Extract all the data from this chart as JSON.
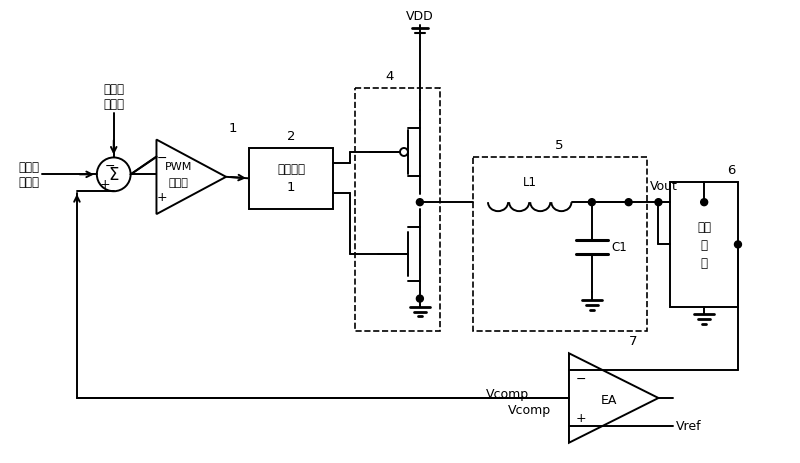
{
  "background": "#ffffff",
  "fig_width": 8.0,
  "fig_height": 4.64,
  "dpi": 100,
  "labels": {
    "current_signal": "电流采\n样信号",
    "slope_signal": "斜坡补\n偿信号",
    "pwm_line1": "PWM",
    "pwm_line2": "比较器",
    "drv_line1": "驱动电路",
    "drv_line2": "1",
    "fb_line1": "反馈",
    "fb_line2": "网络",
    "vdd": "VDD",
    "vout": "Vout",
    "vcomp": "Vcomp",
    "vref": "Vref",
    "L1": "L1",
    "C1": "C1",
    "EA": "EA",
    "n1": "1",
    "n2": "2",
    "n4": "4",
    "n5": "5",
    "n6": "6",
    "n7": "7"
  }
}
